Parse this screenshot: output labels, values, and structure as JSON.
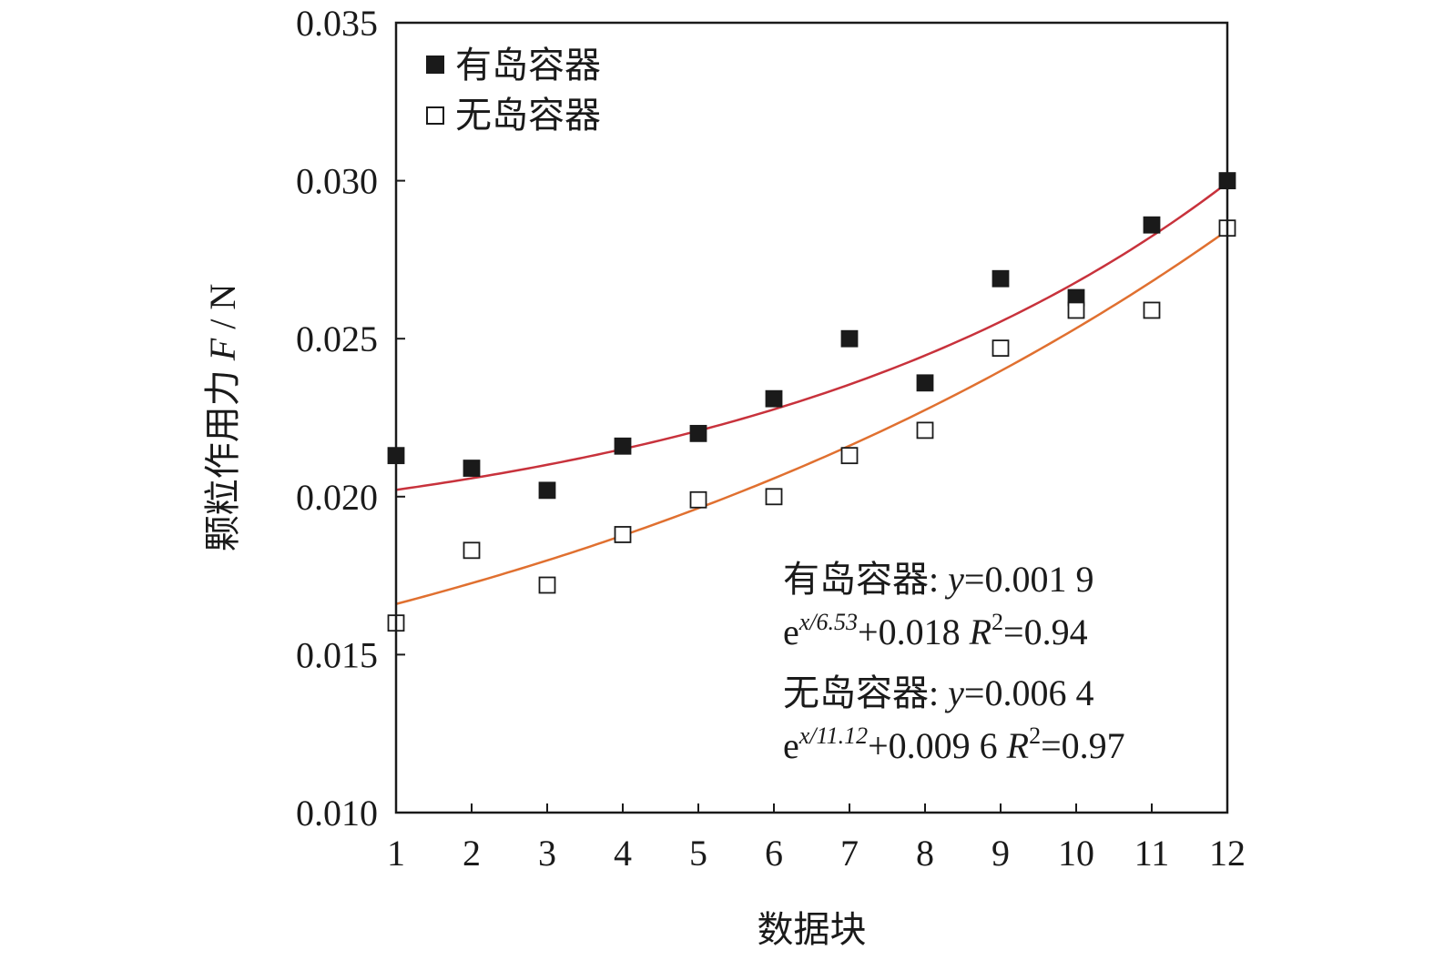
{
  "chart_data": {
    "type": "scatter",
    "xlabel": "数据块",
    "ylabel": "颗粒作用力 F / N",
    "ylabel_parts": {
      "main": "颗粒作用力 ",
      "symbol": "F",
      "unit": " / N"
    },
    "xlim": [
      1,
      12
    ],
    "ylim": [
      0.01,
      0.035
    ],
    "x_ticks": [
      "1",
      "2",
      "3",
      "4",
      "5",
      "6",
      "7",
      "8",
      "9",
      "10",
      "11",
      "12"
    ],
    "y_ticks": [
      "0.010",
      "0.015",
      "0.020",
      "0.025",
      "0.030",
      "0.035"
    ],
    "x": [
      1,
      2,
      3,
      4,
      5,
      6,
      7,
      8,
      9,
      10,
      11,
      12
    ],
    "grid": false,
    "legend": "top-left",
    "series": [
      {
        "name": "有岛容器",
        "marker": "filled-square",
        "color": "#1a1a1a",
        "values": [
          0.0213,
          0.0209,
          0.0202,
          0.0216,
          0.022,
          0.0231,
          0.025,
          0.0236,
          0.0269,
          0.0263,
          0.0286,
          0.03
        ],
        "fit": {
          "type": "exponential",
          "a": 0.0019,
          "b": 6.53,
          "c": 0.018,
          "color": "#c8323c"
        }
      },
      {
        "name": "无岛容器",
        "marker": "open-square",
        "color": "#1a1a1a",
        "values": [
          0.016,
          0.0183,
          0.0172,
          0.0188,
          0.0199,
          0.02,
          0.0213,
          0.0221,
          0.0247,
          0.0259,
          0.0259,
          0.0285
        ],
        "fit": {
          "type": "exponential",
          "a": 0.0064,
          "b": 11.12,
          "c": 0.0096,
          "color": "#e07030"
        }
      }
    ],
    "annotations": [
      {
        "line1": "有岛容器: ",
        "y": "y",
        "eq1": "=0.001 9",
        "e": "e",
        "exp": "x/6.53",
        "eq2": "+0.018  ",
        "R": "R",
        "sq": "2",
        "r2": "=0.94"
      },
      {
        "line1": "无岛容器: ",
        "y": "y",
        "eq1": "=0.006 4",
        "e": "e",
        "exp": "x/11.12",
        "eq2": "+0.009 6  ",
        "R": "R",
        "sq": "2",
        "r2": "=0.97"
      }
    ]
  }
}
